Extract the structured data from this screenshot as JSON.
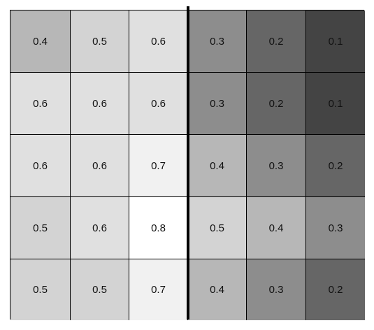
{
  "grid": {
    "rows": [
      [
        "0.4",
        "0.5",
        "0.6",
        "0.3",
        "0.2",
        "0.1"
      ],
      [
        "0.6",
        "0.6",
        "0.6",
        "0.3",
        "0.2",
        "0.1"
      ],
      [
        "0.6",
        "0.6",
        "0.7",
        "0.4",
        "0.3",
        "0.2"
      ],
      [
        "0.5",
        "0.6",
        "0.8",
        "0.5",
        "0.4",
        "0.3"
      ],
      [
        "0.5",
        "0.5",
        "0.7",
        "0.4",
        "0.3",
        "0.2"
      ]
    ],
    "colors": {
      "0.1": "#444444",
      "0.2": "#666666",
      "0.3": "#8d8d8d",
      "0.4": "#b7b7b7",
      "0.5": "#d3d3d3",
      "0.6": "#e0e0e0",
      "0.7": "#f1f1f1",
      "0.8": "#ffffff"
    },
    "border_color": "#000000",
    "divider_after_column": 3
  }
}
